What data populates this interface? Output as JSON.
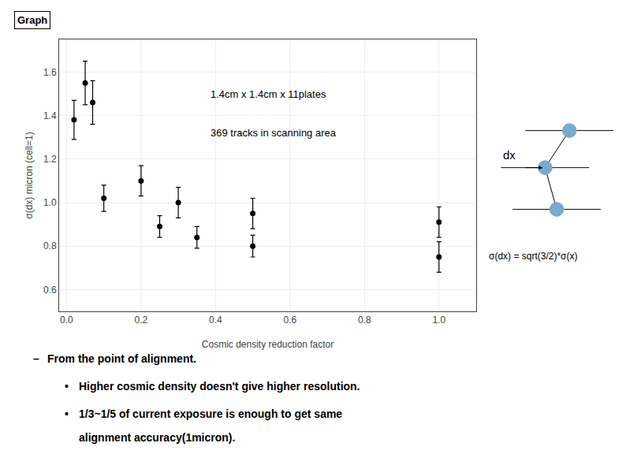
{
  "chart_data": {
    "type": "scatter",
    "title": "Graph",
    "xlabel": "Cosmic density reduction factor",
    "ylabel": "σ(dx) micron (cell=1)",
    "x": [
      0.02,
      0.05,
      0.07,
      0.1,
      0.2,
      0.25,
      0.3,
      0.35,
      0.5,
      0.5,
      1.0,
      1.0
    ],
    "values": [
      1.38,
      1.55,
      1.46,
      1.02,
      1.1,
      0.89,
      1.0,
      0.84,
      0.8,
      0.95,
      0.91,
      0.75
    ],
    "yerr_minus": [
      0.09,
      0.1,
      0.1,
      0.06,
      0.07,
      0.05,
      0.07,
      0.05,
      0.05,
      0.07,
      0.07,
      0.07
    ],
    "yerr_plus": [
      0.09,
      0.1,
      0.1,
      0.06,
      0.07,
      0.05,
      0.07,
      0.05,
      0.05,
      0.07,
      0.07,
      0.07
    ],
    "color": "#000000",
    "xlim": [
      -0.02,
      1.1
    ],
    "xticks": [
      {
        "value": 0,
        "label": "0.0"
      },
      0.2,
      0.4,
      0.6,
      0.8,
      {
        "value": 1.0,
        "label": "1.0"
      }
    ],
    "ylim": [
      0.5,
      1.75
    ],
    "yticks": [
      0.6,
      0.8,
      {
        "value": 1.0,
        "label": "1.0"
      },
      1.2,
      1.4,
      1.6
    ],
    "annotations": [
      "1.4cm x 1.4cm x 11plates",
      "369 tracks in scanning area"
    ],
    "diagram_label": "dx",
    "diagram_color": "#7aaad0",
    "formula": "σ(dx) = sqrt(3/2)*σ(x)",
    "notes": [
      {
        "symbol": "–",
        "lines": [
          "From the point of alignment."
        ]
      },
      {
        "symbol": "•",
        "lines": [
          "Higher cosmic density doesn't give higher resolution."
        ]
      },
      {
        "symbol": "•",
        "lines": [
          "1/3~1/5 of current exposure is enough to get same",
          "alignment accuracy(1micron)."
        ]
      }
    ]
  }
}
